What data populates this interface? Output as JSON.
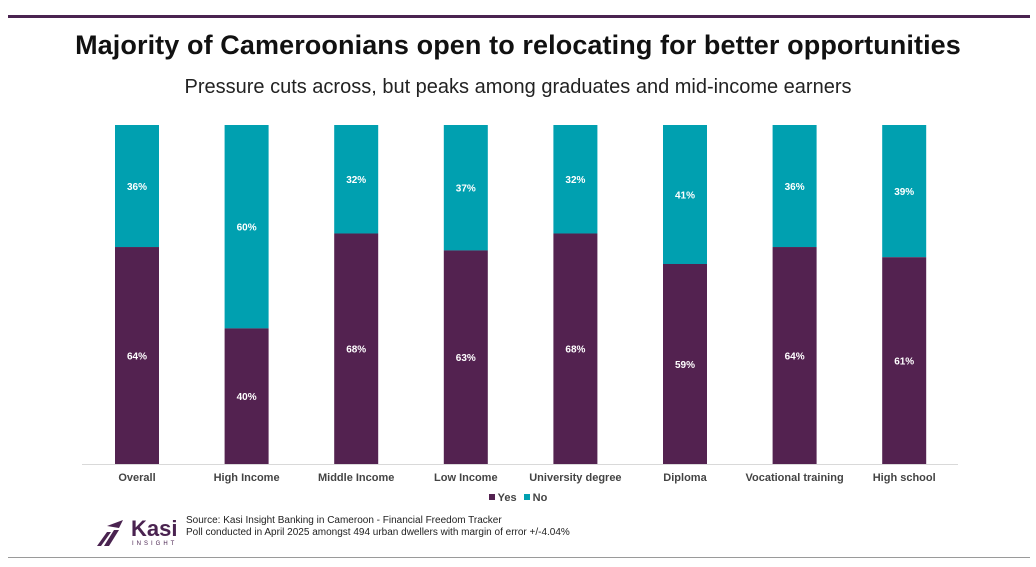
{
  "title": "Majority of Cameroonians open to relocating for better opportunities",
  "subtitle": "Pressure cuts across, but peaks among graduates and mid-income earners",
  "colors": {
    "yes": "#532250",
    "no": "#00a0b0",
    "rule": "#4a2350"
  },
  "chart_data": {
    "type": "bar",
    "stacked": true,
    "categories": [
      "Overall",
      "High Income",
      "Middle Income",
      "Low Income",
      "University degree",
      "Diploma",
      "Vocational training",
      "High school"
    ],
    "series": [
      {
        "name": "Yes",
        "values": [
          64,
          40,
          68,
          63,
          68,
          59,
          64,
          61
        ],
        "labels": [
          "64%",
          "40%",
          "68%",
          "63%",
          "68%",
          "59%",
          "64%",
          "61%"
        ]
      },
      {
        "name": "No",
        "values": [
          36,
          60,
          32,
          37,
          32,
          41,
          36,
          39
        ],
        "labels": [
          "36%",
          "60%",
          "32%",
          "37%",
          "32%",
          "41%",
          "36%",
          "39%"
        ]
      }
    ],
    "ylim": [
      0,
      100
    ],
    "legend_position": "bottom",
    "grid": false
  },
  "legend": {
    "yes": "Yes",
    "no": "No"
  },
  "logo": {
    "name": "Kasi",
    "sub": "INSIGHT"
  },
  "source": {
    "line1": "Source: Kasi Insight Banking in Cameroon - Financial Freedom Tracker",
    "line2": "Poll conducted in April 2025 amongst 494 urban dwellers with margin of error +/-4.04%"
  }
}
